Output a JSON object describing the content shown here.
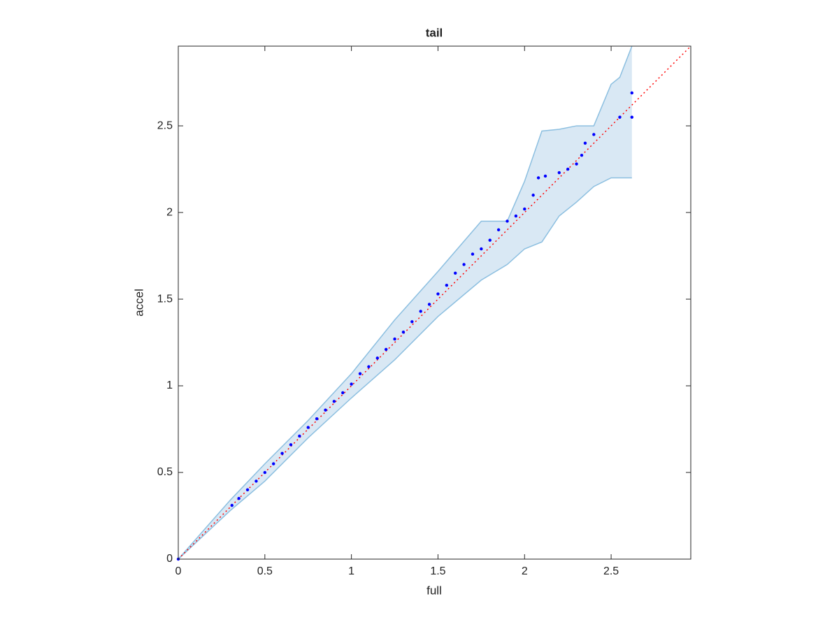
{
  "chart_data": {
    "type": "scatter",
    "title": "tail",
    "x_label": "full",
    "y_label": "accel",
    "x": [
      0,
      0.31,
      0.35,
      0.4,
      0.45,
      0.5,
      0.55,
      0.6,
      0.65,
      0.7,
      0.75,
      0.8,
      0.85,
      0.9,
      0.95,
      1.0,
      1.05,
      1.1,
      1.15,
      1.2,
      1.25,
      1.3,
      1.35,
      1.4,
      1.45,
      1.5,
      1.55,
      1.6,
      1.65,
      1.7,
      1.75,
      1.8,
      1.85,
      1.9,
      1.95,
      2.0,
      2.05,
      2.08,
      2.12,
      2.2,
      2.25,
      2.3,
      2.33,
      2.35,
      2.4,
      2.55,
      2.62,
      2.62
    ],
    "values": [
      0,
      0.31,
      0.35,
      0.4,
      0.45,
      0.5,
      0.55,
      0.61,
      0.66,
      0.71,
      0.76,
      0.81,
      0.86,
      0.91,
      0.96,
      1.01,
      1.07,
      1.11,
      1.16,
      1.21,
      1.27,
      1.31,
      1.37,
      1.43,
      1.47,
      1.53,
      1.58,
      1.65,
      1.7,
      1.76,
      1.79,
      1.84,
      1.9,
      1.95,
      1.98,
      2.02,
      2.1,
      2.2,
      2.21,
      2.23,
      2.25,
      2.28,
      2.33,
      2.4,
      2.45,
      2.55,
      2.55,
      2.69
    ],
    "color": "#0000ff",
    "band": {
      "x": [
        0,
        0.3,
        0.5,
        0.75,
        1.0,
        1.25,
        1.5,
        1.75,
        1.9,
        2.0,
        2.1,
        2.2,
        2.3,
        2.4,
        2.5,
        2.55,
        2.62
      ],
      "upper": [
        0,
        0.34,
        0.55,
        0.8,
        1.07,
        1.38,
        1.66,
        1.95,
        1.95,
        2.18,
        2.47,
        2.48,
        2.5,
        2.5,
        2.74,
        2.78,
        2.96
      ],
      "lower": [
        0,
        0.28,
        0.45,
        0.7,
        0.93,
        1.15,
        1.4,
        1.61,
        1.7,
        1.79,
        1.83,
        1.98,
        2.06,
        2.15,
        2.2,
        2.2,
        2.2
      ],
      "fill": "#d9e8f4",
      "edge": "#8cbfe0"
    },
    "reference_line": {
      "x": [
        0,
        2.96
      ],
      "y": [
        0,
        2.96
      ],
      "color": "#ff0000"
    },
    "xlim": [
      0,
      2.96
    ],
    "ylim": [
      0,
      2.96
    ],
    "xticks": [
      0,
      0.5,
      1,
      1.5,
      2,
      2.5
    ],
    "yticks": [
      0,
      0.5,
      1,
      1.5,
      2,
      2.5
    ]
  }
}
